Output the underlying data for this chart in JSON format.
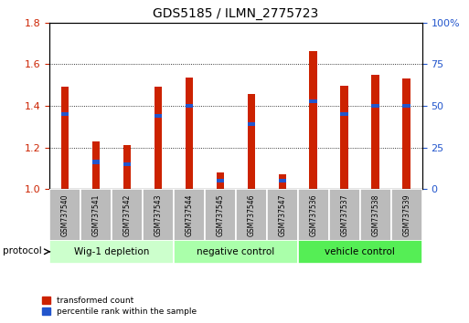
{
  "title": "GDS5185 / ILMN_2775723",
  "samples": [
    "GSM737540",
    "GSM737541",
    "GSM737542",
    "GSM737543",
    "GSM737544",
    "GSM737545",
    "GSM737546",
    "GSM737547",
    "GSM737536",
    "GSM737537",
    "GSM737538",
    "GSM737539"
  ],
  "red_values": [
    1.49,
    1.23,
    1.21,
    1.49,
    1.535,
    1.08,
    1.455,
    1.07,
    1.665,
    1.495,
    1.55,
    1.53
  ],
  "blue_values": [
    1.36,
    1.13,
    1.12,
    1.35,
    1.4,
    1.04,
    1.31,
    1.04,
    1.42,
    1.36,
    1.4,
    1.4
  ],
  "ylim": [
    1.0,
    1.8
  ],
  "yticks_left": [
    1.0,
    1.2,
    1.4,
    1.6,
    1.8
  ],
  "yticks_right": [
    0,
    25,
    50,
    75,
    100
  ],
  "groups": [
    {
      "label": "Wig-1 depletion",
      "start": 0,
      "end": 4
    },
    {
      "label": "negative control",
      "start": 4,
      "end": 8
    },
    {
      "label": "vehicle control",
      "start": 8,
      "end": 12
    }
  ],
  "group_colors": [
    "#ccffcc",
    "#aaffaa",
    "#55ee55"
  ],
  "bar_width": 0.25,
  "blue_bar_height": 0.018,
  "red_color": "#cc2200",
  "blue_color": "#2255cc",
  "legend_red": "transformed count",
  "legend_blue": "percentile rank within the sample",
  "protocol_label": "protocol",
  "label_bg_color": "#bbbbbb",
  "label_sep_color": "#ffffff"
}
